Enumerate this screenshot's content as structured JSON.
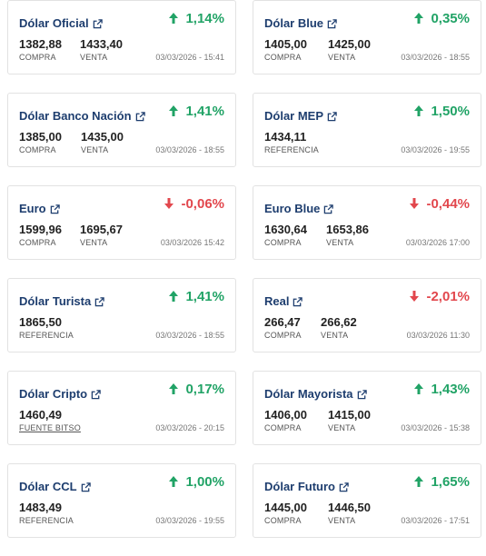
{
  "colors": {
    "up": "#21a366",
    "down": "#e2474d",
    "title": "#1d3d6e"
  },
  "cards": [
    {
      "title": "Dólar Oficial",
      "change": "1,14%",
      "direction": "up",
      "value1": "1382,88",
      "label1": "COMPRA",
      "value2": "1433,40",
      "label2": "VENTA",
      "date": "03/03/2026 - 15:41"
    },
    {
      "title": "Dólar Blue",
      "change": "0,35%",
      "direction": "up",
      "value1": "1405,00",
      "label1": "COMPRA",
      "value2": "1425,00",
      "label2": "VENTA",
      "date": "03/03/2026 - 18:55"
    },
    {
      "title": "Dólar Banco Nación",
      "change": "1,41%",
      "direction": "up",
      "value1": "1385,00",
      "label1": "COMPRA",
      "value2": "1435,00",
      "label2": "VENTA",
      "date": "03/03/2026 - 18:55"
    },
    {
      "title": "Dólar MEP",
      "change": "1,50%",
      "direction": "up",
      "value1": "1434,11",
      "label1": "REFERENCIA",
      "date": "03/03/2026 - 19:55"
    },
    {
      "title": "Euro",
      "change": "-0,06%",
      "direction": "down",
      "value1": "1599,96",
      "label1": "COMPRA",
      "value2": "1695,67",
      "label2": "VENTA",
      "date": "03/03/2026 15:42"
    },
    {
      "title": "Euro Blue",
      "change": "-0,44%",
      "direction": "down",
      "value1": "1630,64",
      "label1": "COMPRA",
      "value2": "1653,86",
      "label2": "VENTA",
      "date": "03/03/2026 17:00"
    },
    {
      "title": "Dólar Turista",
      "change": "1,41%",
      "direction": "up",
      "value1": "1865,50",
      "label1": "REFERENCIA",
      "date": "03/03/2026 - 18:55"
    },
    {
      "title": "Real",
      "change": "-2,01%",
      "direction": "down",
      "value1": "266,47",
      "label1": "COMPRA",
      "value2": "266,62",
      "label2": "VENTA",
      "date": "03/03/2026 11:30"
    },
    {
      "title": "Dólar Cripto",
      "change": "0,17%",
      "direction": "up",
      "value1": "1460,49",
      "label1": "FUENTE BITSO",
      "label1_link": true,
      "date": "03/03/2026 - 20:15"
    },
    {
      "title": "Dólar Mayorista",
      "change": "1,43%",
      "direction": "up",
      "value1": "1406,00",
      "label1": "COMPRA",
      "value2": "1415,00",
      "label2": "VENTA",
      "date": "03/03/2026 - 15:38"
    },
    {
      "title": "Dólar CCL",
      "change": "1,00%",
      "direction": "up",
      "value1": "1483,49",
      "label1": "REFERENCIA",
      "date": "03/03/2026 - 19:55"
    },
    {
      "title": "Dólar Futuro",
      "change": "1,65%",
      "direction": "up",
      "value1": "1445,00",
      "label1": "COMPRA",
      "value2": "1446,50",
      "label2": "VENTA",
      "date": "03/03/2026 - 17:51"
    }
  ]
}
